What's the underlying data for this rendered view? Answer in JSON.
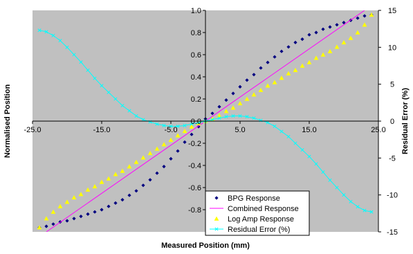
{
  "chart_data": {
    "type": "scatter",
    "title": "",
    "xlabel": "Measured Position (mm)",
    "ylabel": "Normalised Position",
    "y2label": "Residual Error (%)",
    "xlim": [
      -25,
      25
    ],
    "ylim": [
      -1.0,
      1.0
    ],
    "y2lim": [
      -15,
      15
    ],
    "x_ticks": [
      "-25.0",
      "-15.0",
      "-5.0",
      "5.0",
      "15.0",
      "25.0"
    ],
    "y_ticks": [
      "1.0",
      "0.8",
      "0.6",
      "0.4",
      "0.2",
      "0.0",
      "-0.2",
      "-0.4",
      "-0.6",
      "-0.8"
    ],
    "y2_ticks": [
      "15",
      "10",
      "5",
      "0",
      "-5",
      "-10",
      "-15"
    ],
    "grid": false,
    "background": "#c0c0c0",
    "legend_position": "bottom-right",
    "series": [
      {
        "name": "BPG Response",
        "axis": "left",
        "marker": "diamond",
        "color": "#000080",
        "x": [
          -24,
          -23,
          -22,
          -21,
          -20,
          -19,
          -18,
          -17,
          -16,
          -15,
          -14,
          -13,
          -12,
          -11,
          -10,
          -9,
          -8,
          -7,
          -6,
          -5,
          -4,
          -3,
          -2,
          -1,
          0,
          1,
          2,
          3,
          4,
          5,
          6,
          7,
          8,
          9,
          10,
          11,
          12,
          13,
          14,
          15,
          16,
          17,
          18,
          19,
          20,
          21,
          22,
          23,
          24
        ],
        "y": [
          -0.96,
          -0.95,
          -0.93,
          -0.91,
          -0.9,
          -0.88,
          -0.86,
          -0.84,
          -0.82,
          -0.8,
          -0.77,
          -0.74,
          -0.71,
          -0.67,
          -0.63,
          -0.58,
          -0.53,
          -0.47,
          -0.41,
          -0.34,
          -0.27,
          -0.19,
          -0.12,
          -0.05,
          0.02,
          0.07,
          0.13,
          0.19,
          0.25,
          0.31,
          0.37,
          0.42,
          0.48,
          0.53,
          0.58,
          0.63,
          0.67,
          0.71,
          0.74,
          0.78,
          0.8,
          0.83,
          0.85,
          0.87,
          0.89,
          0.91,
          0.93,
          0.95,
          0.96
        ]
      },
      {
        "name": "Combined Response",
        "axis": "left",
        "type": "line",
        "color": "#ff00ff",
        "x": [
          -23,
          23
        ],
        "y": [
          -1.0,
          1.0
        ]
      },
      {
        "name": "Log Amp Response",
        "axis": "left",
        "marker": "triangle",
        "color": "#ffff00",
        "x": [
          -24,
          -23,
          -22,
          -21,
          -20,
          -19,
          -18,
          -17,
          -16,
          -15,
          -14,
          -13,
          -12,
          -11,
          -10,
          -9,
          -8,
          -7,
          -6,
          -5,
          -4,
          -3,
          -2,
          -1,
          0,
          1,
          2,
          3,
          4,
          5,
          6,
          7,
          8,
          9,
          10,
          11,
          12,
          13,
          14,
          15,
          16,
          17,
          18,
          19,
          20,
          21,
          22,
          23,
          24
        ],
        "y": [
          -0.96,
          -0.88,
          -0.82,
          -0.77,
          -0.73,
          -0.69,
          -0.66,
          -0.62,
          -0.59,
          -0.55,
          -0.52,
          -0.48,
          -0.45,
          -0.41,
          -0.37,
          -0.33,
          -0.29,
          -0.25,
          -0.21,
          -0.17,
          -0.13,
          -0.09,
          -0.05,
          -0.02,
          0.0,
          0.02,
          0.05,
          0.09,
          0.12,
          0.16,
          0.2,
          0.24,
          0.28,
          0.32,
          0.35,
          0.39,
          0.43,
          0.46,
          0.5,
          0.53,
          0.57,
          0.6,
          0.63,
          0.67,
          0.71,
          0.75,
          0.8,
          0.87,
          0.96
        ]
      },
      {
        "name": "Residual Error (%)",
        "axis": "right",
        "marker": "x",
        "type": "line",
        "color": "#00ffff",
        "x": [
          -24,
          -23,
          -22,
          -21,
          -20,
          -19,
          -18,
          -17,
          -16,
          -15,
          -14,
          -13,
          -12,
          -11,
          -10,
          -9,
          -8,
          -7,
          -6,
          -5,
          -4,
          -3,
          -2,
          -1,
          0,
          1,
          2,
          3,
          4,
          5,
          6,
          7,
          8,
          9,
          10,
          11,
          12,
          13,
          14,
          15,
          16,
          17,
          18,
          19,
          20,
          21,
          22,
          23,
          24
        ],
        "y": [
          12.3,
          12.1,
          11.6,
          10.9,
          10.0,
          9.0,
          8.0,
          6.9,
          5.8,
          4.8,
          3.9,
          3.0,
          2.1,
          1.4,
          0.7,
          0.2,
          -0.1,
          -0.4,
          -0.6,
          -0.7,
          -0.7,
          -0.6,
          -0.4,
          -0.2,
          0.0,
          0.2,
          0.4,
          0.6,
          0.7,
          0.7,
          0.6,
          0.4,
          0.1,
          -0.2,
          -0.7,
          -1.4,
          -2.1,
          -3.0,
          -3.9,
          -4.8,
          -5.8,
          -6.9,
          -8.0,
          -9.0,
          -10.0,
          -10.9,
          -11.6,
          -12.1,
          -12.3
        ]
      }
    ]
  }
}
